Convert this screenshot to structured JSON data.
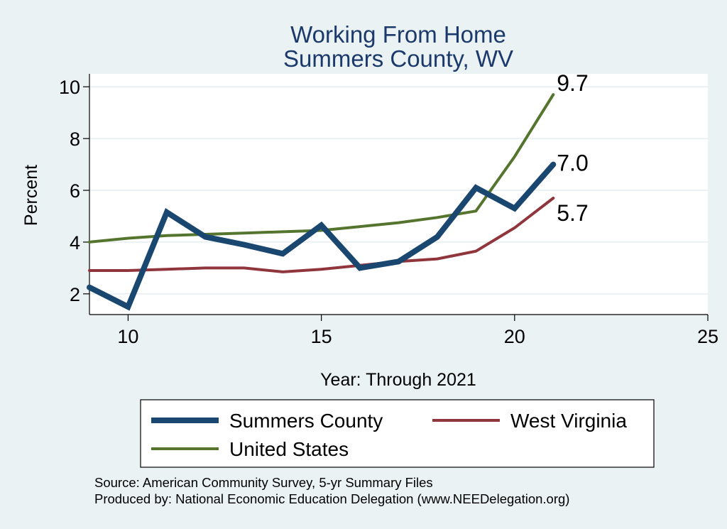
{
  "chart_data": {
    "type": "line",
    "title": [
      "Working From Home",
      "Summers County, WV"
    ],
    "xlabel": "Year: Through 2021",
    "ylabel": "Percent",
    "xlim": [
      9,
      25
    ],
    "ylim": [
      1.2,
      10.5
    ],
    "xticks": [
      10,
      15,
      20,
      25
    ],
    "yticks": [
      2,
      4,
      6,
      8,
      10
    ],
    "grid": "horizontal",
    "colors": {
      "background": "#eaf2f3",
      "plot": "#ffffff",
      "title": "#1b3a6b",
      "summers": "#1a476f",
      "wv": "#90353b",
      "us": "#55752f"
    },
    "series": [
      {
        "name": "Summers County",
        "key": "summers",
        "x": [
          9,
          10,
          11,
          12,
          13,
          14,
          15,
          16,
          17,
          18,
          19,
          20,
          21
        ],
        "values": [
          2.25,
          1.5,
          5.15,
          4.2,
          3.9,
          3.55,
          4.65,
          3.0,
          3.25,
          4.2,
          6.1,
          5.3,
          7.0
        ],
        "end_label": "7.0"
      },
      {
        "name": "West Virginia",
        "key": "wv",
        "x": [
          9,
          10,
          11,
          12,
          13,
          14,
          15,
          16,
          17,
          18,
          19,
          20,
          21
        ],
        "values": [
          2.9,
          2.9,
          2.95,
          3.0,
          3.0,
          2.85,
          2.95,
          3.1,
          3.25,
          3.35,
          3.65,
          4.55,
          5.7
        ],
        "end_label": "5.7"
      },
      {
        "name": "United States",
        "key": "us",
        "x": [
          9,
          10,
          11,
          12,
          13,
          14,
          15,
          16,
          17,
          18,
          19,
          20,
          21
        ],
        "values": [
          4.0,
          4.15,
          4.25,
          4.3,
          4.35,
          4.4,
          4.45,
          4.6,
          4.75,
          4.95,
          5.2,
          7.3,
          9.7
        ],
        "end_label": "9.7"
      }
    ],
    "legend": {
      "position": "bottom",
      "items": [
        {
          "label": "Summers County",
          "key": "summers"
        },
        {
          "label": "West Virginia",
          "key": "wv"
        },
        {
          "label": "United States",
          "key": "us"
        }
      ]
    },
    "notes": [
      "Source: American Community Survey, 5-yr Summary Files",
      "Produced by: National Economic Education Delegation (www.NEEDelegation.org)"
    ]
  }
}
